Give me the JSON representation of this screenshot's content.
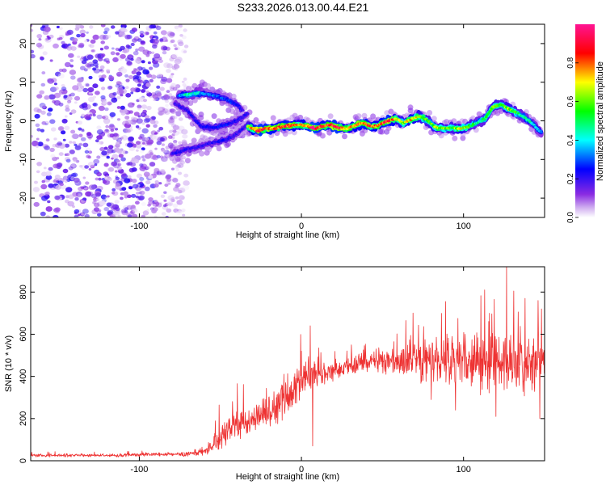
{
  "figure_title": "S233.2026.013.00.44.E21",
  "chart_data": [
    {
      "type": "heatmap",
      "title": "S233.2026.013.00.44.E21",
      "xlabel": "Height of straight line (km)",
      "ylabel": "Frequency (Hz)",
      "xlim": [
        -167,
        150
      ],
      "ylim": [
        -25,
        25
      ],
      "xticks": [
        -100,
        0,
        100
      ],
      "yticks": [
        -20,
        -10,
        0,
        10,
        20
      ],
      "xtick_labels": [
        "-100",
        "0",
        "100"
      ],
      "ytick_labels": [
        "-20",
        "-10",
        "0",
        "10",
        "20"
      ],
      "colorbar": {
        "label": "Normalized spectral amplitude",
        "range": [
          0,
          1
        ],
        "ticks": [
          0,
          0.2,
          0.4,
          0.6,
          0.8
        ],
        "tick_labels": [
          "0.0",
          "0.2",
          "0.4",
          "0.6",
          "0.8"
        ],
        "colors": [
          "#ffffff",
          "#8a2be2",
          "#0000ff",
          "#00ffff",
          "#00ff00",
          "#ffff00",
          "#ff0000",
          "#ff1493"
        ]
      },
      "noise_region": {
        "x": [
          -167,
          -77
        ],
        "y": [
          -25,
          25
        ],
        "amplitude": 0.15
      },
      "tracks": [
        {
          "name": "upper branch",
          "x": [
            -76,
            -70,
            -64,
            -58,
            -52,
            -46,
            -40,
            -36
          ],
          "y": [
            6.5,
            6.8,
            7.2,
            6.9,
            6.3,
            5.6,
            4.2,
            2.5
          ],
          "amplitude": [
            0.3,
            0.45,
            0.4,
            0.3,
            0.3,
            0.28,
            0.25,
            0.2
          ]
        },
        {
          "name": "middle branch",
          "x": [
            -78,
            -70,
            -62,
            -54,
            -46,
            -40,
            -36,
            -33
          ],
          "y": [
            4.5,
            2.5,
            -1.5,
            -1.8,
            -1.0,
            0.0,
            1.0,
            2.0
          ],
          "amplitude": [
            0.2,
            0.2,
            0.22,
            0.25,
            0.25,
            0.22,
            0.2,
            0.2
          ]
        },
        {
          "name": "lower branch",
          "x": [
            -80,
            -72,
            -64,
            -56,
            -48,
            -42,
            -36,
            -32
          ],
          "y": [
            -8.5,
            -7.5,
            -6.8,
            -5.8,
            -5.0,
            -4.0,
            -2.0,
            -0.5
          ],
          "amplitude": [
            0.2,
            0.22,
            0.2,
            0.2,
            0.22,
            0.2,
            0.2,
            0.2
          ]
        },
        {
          "name": "main signal",
          "x": [
            -33,
            -27,
            -22,
            -17,
            -12,
            -7,
            -2,
            3,
            8,
            13,
            18,
            23,
            28,
            33,
            38,
            43,
            48,
            53,
            58,
            63,
            68,
            73,
            78,
            83,
            88,
            93,
            98,
            103,
            108,
            113,
            118,
            123,
            128,
            133,
            138,
            143,
            148
          ],
          "y": [
            -1.5,
            -2.5,
            -2.0,
            -2.0,
            -1.5,
            -1.2,
            -1.0,
            -1.2,
            -2.0,
            -1.5,
            -1.0,
            -1.8,
            -2.0,
            -1.2,
            -0.5,
            -1.5,
            -1.0,
            0.0,
            0.5,
            -0.5,
            0.5,
            1.2,
            0.0,
            -1.8,
            -2.0,
            -1.8,
            -2.0,
            -1.5,
            -0.5,
            0.5,
            3.5,
            4.2,
            3.0,
            2.0,
            0.8,
            -1.0,
            -3.0
          ],
          "amplitude": [
            0.6,
            0.9,
            0.85,
            0.8,
            0.82,
            0.85,
            0.7,
            0.8,
            0.95,
            0.8,
            0.85,
            0.9,
            0.7,
            0.75,
            0.85,
            0.8,
            0.75,
            0.9,
            0.7,
            0.6,
            0.75,
            0.65,
            0.55,
            0.65,
            0.6,
            0.55,
            0.7,
            0.6,
            0.45,
            0.5,
            0.6,
            0.55,
            0.65,
            0.5,
            0.45,
            0.4,
            0.35
          ]
        }
      ]
    },
    {
      "type": "line",
      "xlabel": "Height of straight line (km)",
      "ylabel": "SNR (10 * v/v)",
      "xlim": [
        -167,
        150
      ],
      "ylim": [
        0,
        920
      ],
      "xticks": [
        -100,
        0,
        100
      ],
      "yticks": [
        0,
        200,
        400,
        600,
        800
      ],
      "xtick_labels": [
        "-100",
        "0",
        "100"
      ],
      "ytick_labels": [
        "0",
        "200",
        "400",
        "600",
        "800"
      ],
      "series": [
        {
          "name": "SNR",
          "color": "#ee3333",
          "envelope_x": [
            -167,
            -120,
            -90,
            -70,
            -60,
            -55,
            -50,
            -45,
            -40,
            -35,
            -30,
            -25,
            -20,
            -15,
            -10,
            -5,
            0,
            5,
            10,
            20,
            30,
            40,
            50,
            60,
            70,
            80,
            90,
            100,
            110,
            120,
            130,
            140,
            150
          ],
          "envelope_mean": [
            25,
            25,
            30,
            30,
            45,
            70,
            110,
            150,
            170,
            190,
            195,
            210,
            240,
            270,
            300,
            330,
            370,
            390,
            400,
            420,
            450,
            470,
            480,
            470,
            470,
            480,
            460,
            470,
            480,
            460,
            470,
            470,
            470
          ],
          "envelope_spread": [
            10,
            10,
            10,
            12,
            25,
            45,
            70,
            80,
            85,
            85,
            85,
            90,
            95,
            100,
            110,
            110,
            110,
            100,
            70,
            60,
            65,
            70,
            80,
            90,
            110,
            130,
            140,
            150,
            160,
            170,
            170,
            160,
            160
          ],
          "peaks": [
            {
              "x": -0.1,
              "y": 520
            },
            {
              "x": 5.5,
              "y": 640
            },
            {
              "x": -15.5,
              "y": 300
            },
            {
              "x": 64.5,
              "y": 665
            },
            {
              "x": 89,
              "y": 755
            },
            {
              "x": 96.5,
              "y": 675
            },
            {
              "x": 113,
              "y": 810
            },
            {
              "x": 119,
              "y": 765
            },
            {
              "x": 126.5,
              "y": 920
            },
            {
              "x": 131,
              "y": 805
            },
            {
              "x": 138,
              "y": 770
            },
            {
              "x": 146,
              "y": 760
            },
            {
              "x": 148,
              "y": 720
            },
            {
              "x": 101,
              "y": 600
            }
          ],
          "dips": [
            {
              "x": 7,
              "y": 70
            },
            {
              "x": 120,
              "y": 210
            },
            {
              "x": 147,
              "y": 200
            },
            {
              "x": 95,
              "y": 240
            },
            {
              "x": 80,
              "y": 290
            }
          ]
        }
      ]
    }
  ]
}
